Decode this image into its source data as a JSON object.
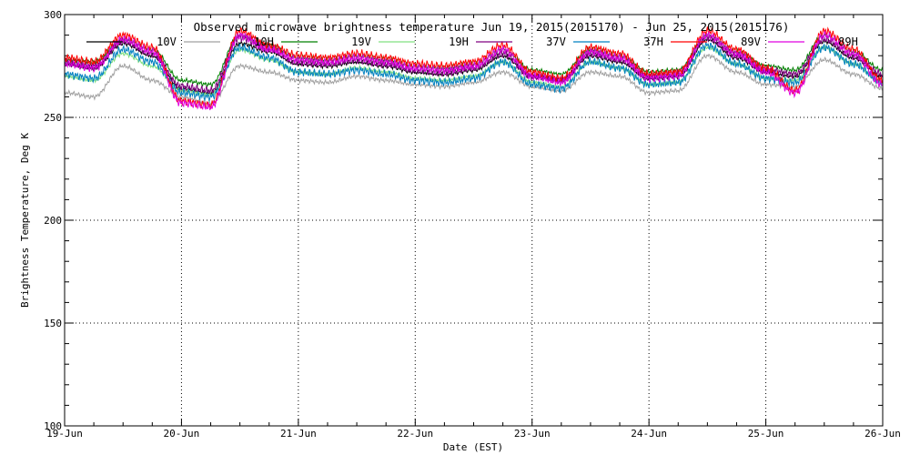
{
  "chart_data": {
    "type": "line",
    "title": "Observed microwave brightness temperature Jun 19, 2015(2015170) - Jun 25, 2015(2015176)",
    "xlabel": "Date (EST)",
    "ylabel": "Brightness Temperature, Deg K",
    "xlim": [
      "19-Jun",
      "26-Jun"
    ],
    "ylim": [
      100,
      300
    ],
    "x_ticks": [
      "19-Jun",
      "20-Jun",
      "21-Jun",
      "22-Jun",
      "23-Jun",
      "24-Jun",
      "25-Jun",
      "26-Jun"
    ],
    "y_ticks": [
      100,
      150,
      200,
      250,
      300
    ],
    "grid": true,
    "legend_position": "top",
    "x": [
      "Jun 19 00:00",
      "Jun 19 06:00",
      "Jun 19 12:00",
      "Jun 19 18:00",
      "Jun 20 00:00",
      "Jun 20 06:00",
      "Jun 20 12:00",
      "Jun 20 18:00",
      "Jun 21 00:00",
      "Jun 21 06:00",
      "Jun 21 12:00",
      "Jun 21 18:00",
      "Jun 22 00:00",
      "Jun 22 06:00",
      "Jun 22 12:00",
      "Jun 22 18:00",
      "Jun 23 00:00",
      "Jun 23 06:00",
      "Jun 23 12:00",
      "Jun 23 18:00",
      "Jun 24 00:00",
      "Jun 24 06:00",
      "Jun 24 12:00",
      "Jun 24 18:00",
      "Jun 25 00:00",
      "Jun 25 06:00",
      "Jun 25 12:00",
      "Jun 25 18:00",
      "Jun 26 00:00"
    ],
    "series": [
      {
        "name": "10V",
        "color": "#000000",
        "values": [
          276,
          274,
          286,
          280,
          264,
          262,
          286,
          282,
          276,
          275,
          277,
          275,
          272,
          271,
          273,
          280,
          270,
          268,
          280,
          277,
          269,
          270,
          288,
          279,
          272,
          270,
          287,
          279,
          270
        ]
      },
      {
        "name": "10H",
        "color": "#a0a0a0",
        "values": [
          262,
          260,
          275,
          268,
          260,
          257,
          275,
          272,
          268,
          267,
          270,
          268,
          266,
          265,
          267,
          272,
          265,
          263,
          272,
          270,
          262,
          263,
          280,
          272,
          266,
          265,
          278,
          271,
          264
        ]
      },
      {
        "name": "19V",
        "color": "#008000",
        "values": [
          278,
          277,
          288,
          283,
          268,
          266,
          290,
          285,
          279,
          278,
          280,
          278,
          275,
          274,
          276,
          283,
          273,
          271,
          283,
          280,
          272,
          273,
          290,
          282,
          275,
          273,
          290,
          282,
          273
        ]
      },
      {
        "name": "19H",
        "color": "#80e080",
        "values": [
          270,
          268,
          281,
          275,
          263,
          261,
          283,
          278,
          272,
          271,
          274,
          272,
          269,
          268,
          270,
          277,
          267,
          265,
          277,
          274,
          266,
          267,
          284,
          276,
          269,
          268,
          284,
          276,
          267
        ]
      },
      {
        "name": "37V",
        "color": "#800080",
        "values": [
          277,
          275,
          287,
          281,
          265,
          263,
          289,
          283,
          277,
          276,
          278,
          276,
          273,
          272,
          274,
          281,
          270,
          268,
          281,
          278,
          270,
          271,
          289,
          280,
          273,
          271,
          288,
          280,
          271
        ]
      },
      {
        "name": "37H",
        "color": "#0080c0",
        "values": [
          271,
          269,
          283,
          277,
          262,
          260,
          284,
          279,
          272,
          271,
          273,
          271,
          268,
          267,
          269,
          277,
          266,
          264,
          277,
          274,
          266,
          267,
          285,
          276,
          269,
          267,
          284,
          276,
          267
        ]
      },
      {
        "name": "89V",
        "color": "#ff0000",
        "values": [
          279,
          277,
          290,
          284,
          258,
          256,
          292,
          285,
          280,
          279,
          281,
          279,
          276,
          275,
          277,
          285,
          272,
          269,
          284,
          281,
          271,
          272,
          292,
          283,
          274,
          263,
          292,
          283,
          268
        ]
      },
      {
        "name": "89H",
        "color": "#e000e0",
        "values": [
          276,
          274,
          288,
          282,
          257,
          255,
          290,
          283,
          278,
          277,
          279,
          277,
          274,
          273,
          275,
          283,
          270,
          267,
          282,
          279,
          269,
          270,
          290,
          281,
          272,
          262,
          290,
          281,
          266
        ]
      }
    ]
  }
}
